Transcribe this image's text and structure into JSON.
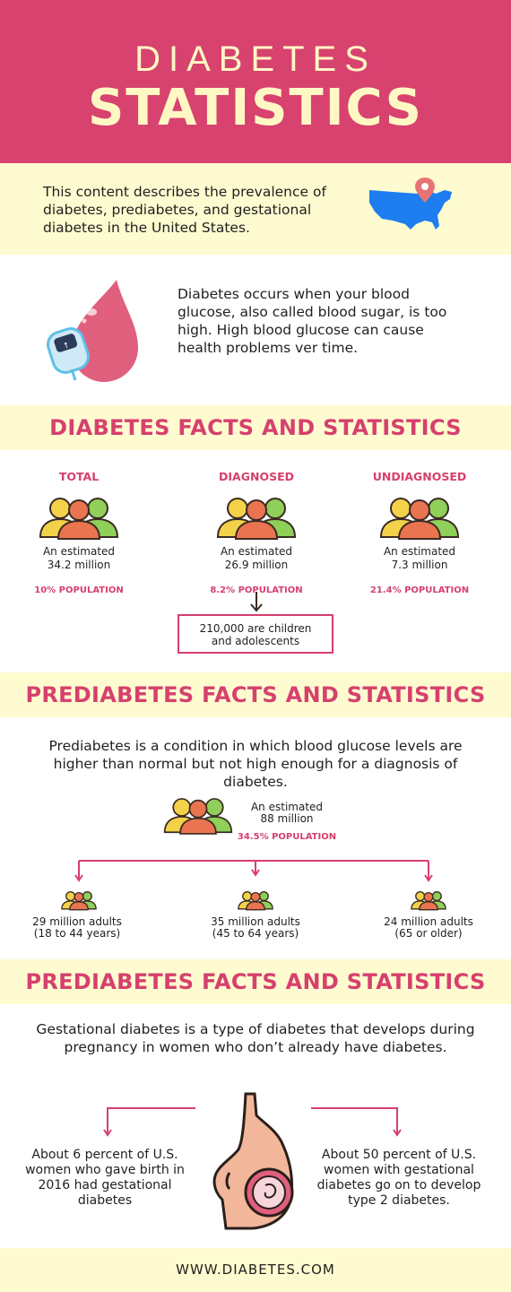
{
  "header": {
    "line1": "DIABETES",
    "line2": "STATISTICS"
  },
  "intro": {
    "text": "This content describes the prevalence of diabetes, prediabetes, and gestational diabetes in the United States."
  },
  "about": {
    "text": "Diabetes occurs when your blood glucose, also called blood sugar, is too high. High blood glucose can cause health problems ver time."
  },
  "diabetes": {
    "heading": "DIABETES FACTS AND STATISTICS",
    "columns": [
      {
        "label": "TOTAL",
        "estimate_prefix": "An estimated",
        "estimate": "34.2 million",
        "population": "10% POPULATION"
      },
      {
        "label": "DIAGNOSED",
        "estimate_prefix": "An estimated",
        "estimate": "26.9 million",
        "population": "8.2% POPULATION"
      },
      {
        "label": "UNDIAGNOSED",
        "estimate_prefix": "An estimated",
        "estimate": "7.3 million",
        "population": "21.4% POPULATION"
      }
    ],
    "children_note_line1": "210,000 are children",
    "children_note_line2": "and adolescents"
  },
  "prediabetes": {
    "heading": "PREDIABETES FACTS AND STATISTICS",
    "lead": "Prediabetes is a condition in which blood glucose levels are higher than normal but not high enough for a diagnosis of diabetes.",
    "estimate_prefix": "An estimated",
    "estimate": "88 million",
    "population": "34.5% POPULATION",
    "groups": [
      {
        "line1": "29 million adults",
        "line2": "(18 to 44 years)"
      },
      {
        "line1": "35 million adults",
        "line2": "(45 to 64 years)"
      },
      {
        "line1": "24 million adults",
        "line2": "(65 or older)"
      }
    ]
  },
  "gestational": {
    "heading": "PREDIABETES FACTS AND STATISTICS",
    "lead": "Gestational diabetes is a type of diabetes that develops during pregnancy in women who don’t already have diabetes.",
    "left": "About 6 percent of U.S. women who gave birth in 2016 had gestational diabetes",
    "right": "About 50 percent of U.S. women with gestational diabetes go on to develop type 2 diabetes."
  },
  "footer": {
    "url": "WWW.DIABETES.COM"
  },
  "colors": {
    "pink": "#d8426f",
    "cream": "#fffbd0",
    "blue": "#1e7ef0",
    "yellow": "#f3d24a",
    "orange": "#e9744f",
    "green": "#8fcf5a"
  }
}
